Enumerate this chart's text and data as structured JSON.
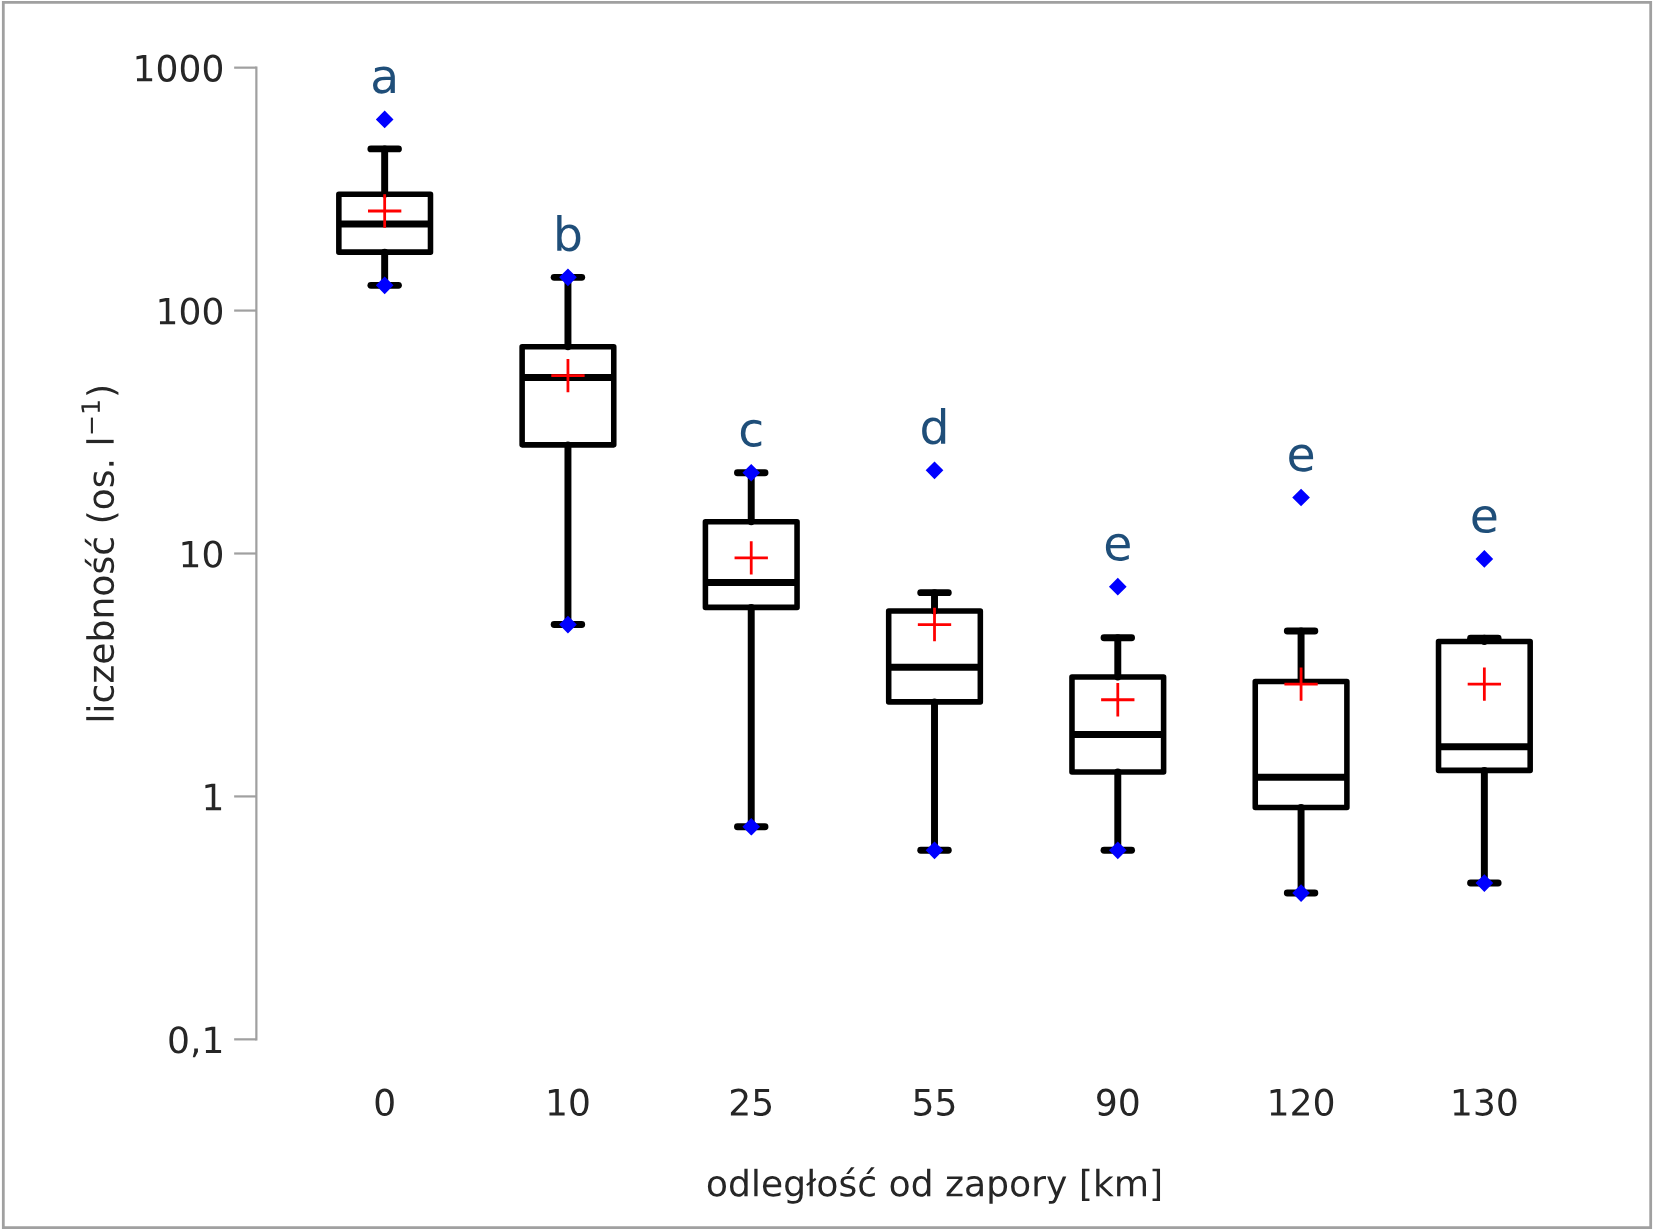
{
  "chart_data": {
    "type": "box",
    "xlabel": "odległość od zapory [km]",
    "ylabel": "liczebność (os. l$^{−1}$)",
    "categories": [
      "0",
      "10",
      "25",
      "55",
      "90",
      "120",
      "130"
    ],
    "boxes": [
      {
        "low": 127,
        "q1": 174,
        "median": 227,
        "q3": 301,
        "high": 463,
        "mean": 257,
        "outliers": [
          612,
          127
        ]
      },
      {
        "low": 5.1,
        "q1": 28,
        "median": 53,
        "q3": 71,
        "high": 137,
        "mean": 54,
        "outliers": [
          137,
          5.1
        ]
      },
      {
        "low": 0.75,
        "q1": 6.0,
        "median": 7.6,
        "q3": 13.5,
        "high": 21.5,
        "mean": 9.6,
        "outliers": [
          21.5,
          0.75
        ]
      },
      {
        "low": 0.6,
        "q1": 2.45,
        "median": 3.4,
        "q3": 5.8,
        "high": 6.9,
        "mean": 5.1,
        "outliers": [
          22,
          0.6
        ]
      },
      {
        "low": 0.6,
        "q1": 1.26,
        "median": 1.8,
        "q3": 3.1,
        "high": 4.5,
        "mean": 2.5,
        "outliers": [
          7.3,
          0.6
        ]
      },
      {
        "low": 0.4,
        "q1": 0.9,
        "median": 1.2,
        "q3": 2.97,
        "high": 4.8,
        "mean": 2.9,
        "outliers": [
          17,
          0.4
        ]
      },
      {
        "low": 0.44,
        "q1": 1.28,
        "median": 1.6,
        "q3": 4.34,
        "high": 4.48,
        "mean": 2.9,
        "outliers": [
          9.5,
          0.44
        ]
      }
    ],
    "log": true,
    "ylim": [
      0.1,
      1000
    ],
    "yticks": [
      {
        "value": 0.1,
        "label": "0,1"
      },
      1,
      10,
      100,
      1000
    ],
    "grid": false,
    "annotations": [
      "a",
      "b",
      "c",
      "d",
      "e",
      "e",
      "e"
    ]
  }
}
